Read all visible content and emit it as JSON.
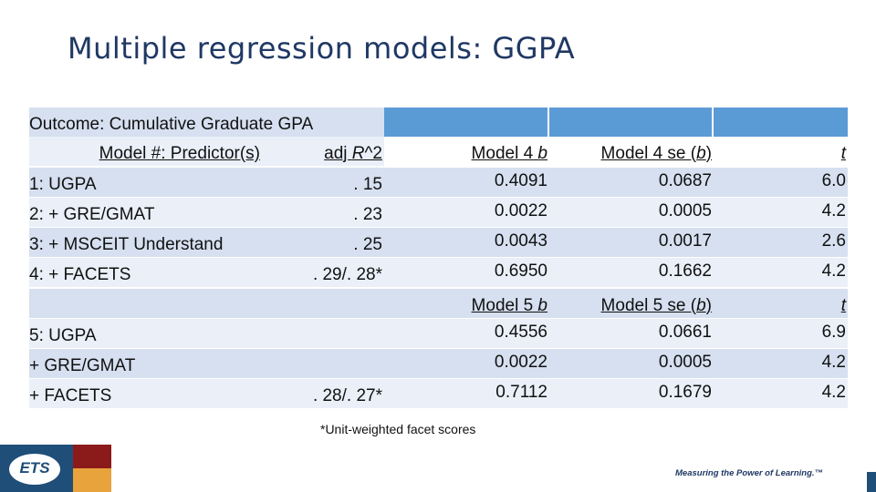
{
  "title": "Multiple regression models: GGPA",
  "table": {
    "outcome_label": "Outcome: Cumulative Graduate GPA",
    "header": {
      "model_predictor": "Model #: Predictor(s)",
      "adj_r2_prefix": "adj ",
      "adj_r2_R": "R",
      "adj_r2_suffix": "^2"
    },
    "model4": {
      "b_prefix": "Model 4 ",
      "b_sym": "b",
      "se_prefix": "Model 4 se (",
      "se_sym": "b",
      "se_suffix": ")",
      "t": "t"
    },
    "rows": [
      {
        "predictor": "1: UGPA",
        "adj_r2": ". 15",
        "b": "0.4091",
        "se": "0.0687",
        "t": "6.0"
      },
      {
        "predictor": "2: + GRE/GMAT",
        "adj_r2": ". 23",
        "b": "0.0022",
        "se": "0.0005",
        "t": "4.2"
      },
      {
        "predictor": "3: + MSCEIT Understand",
        "adj_r2": ". 25",
        "b": "0.0043",
        "se": "0.0017",
        "t": "2.6"
      },
      {
        "predictor": "4: + FACETS",
        "adj_r2": ". 29/. 28*",
        "b": "0.6950",
        "se": "0.1662",
        "t": "4.2"
      }
    ],
    "model5": {
      "b_prefix": "Model 5 ",
      "b_sym": "b",
      "se_prefix": "Model 5 se (",
      "se_sym": "b",
      "se_suffix": ")",
      "t": "t"
    },
    "rows5": [
      {
        "predictor": "5: UGPA",
        "adj_r2": "",
        "b": "0.4556",
        "se": "0.0661",
        "t": "6.9"
      },
      {
        "predictor": "+ GRE/GMAT",
        "adj_r2": "",
        "b": "0.0022",
        "se": "0.0005",
        "t": "4.2"
      },
      {
        "predictor": "+ FACETS",
        "adj_r2": ". 28/. 27*",
        "b": "0.7112",
        "se": "0.1679",
        "t": "4.2"
      }
    ]
  },
  "footnote": "*Unit-weighted facet scores",
  "logo_text": "ETS",
  "tagline": "Measuring the Power of Learning.™",
  "colors": {
    "title": "#1f3864",
    "header_band": "#5b9bd5",
    "row_dark": "#d6e0f0",
    "row_light": "#eaeff8",
    "logo_blue": "#1f4e79",
    "logo_red": "#8b1a1a",
    "logo_orange": "#e8a33d"
  }
}
